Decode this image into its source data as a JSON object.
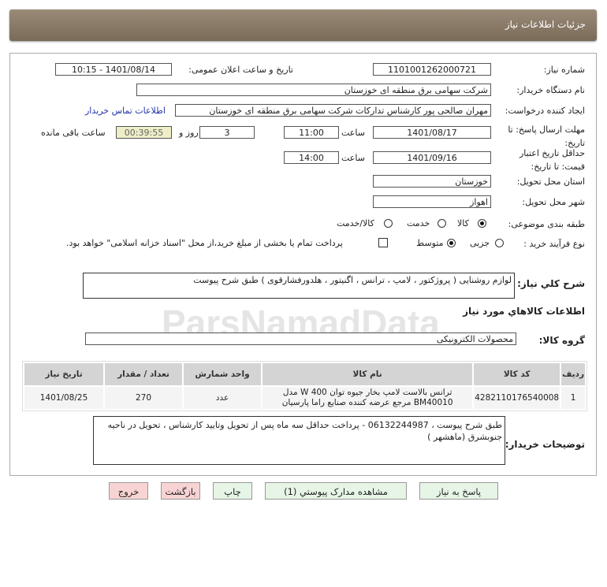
{
  "header": {
    "title": "جزئیات اطلاعات نیاز"
  },
  "form": {
    "need_number_label": "شماره نیاز:",
    "need_number": "1101001262000721",
    "announce_label": "تاریخ و ساعت اعلان عمومی:",
    "announce_value": "1401/08/14 - 10:15",
    "buyer_label": "نام دستگاه خریدار:",
    "buyer": "شرکت سهامی برق منطقه ای خوزستان",
    "creator_label": "ایجاد کننده درخواست:",
    "creator": "مهران صالحی پور کارشناس تدارکات شرکت سهامی برق منطقه ای خوزستان",
    "contact_link": "اطلاعات تماس خریدار",
    "deadline_label": "مهلت ارسال پاسخ: تا تاریخ:",
    "deadline_date": "1401/08/17",
    "time_label": "ساعت",
    "deadline_time": "11:00",
    "days": "3",
    "days_label": "روز و",
    "remaining": "00:39:55",
    "remaining_label": "ساعت باقی مانده",
    "validity_label": "حداقل تاریخ اعتبار قیمت: تا تاریخ:",
    "validity_date": "1401/09/16",
    "validity_time": "14:00",
    "province_label": "استان محل تحویل:",
    "province": "خوزستان",
    "city_label": "شهر محل تحویل:",
    "city": "اهواز",
    "category_label": "طبقه بندی موضوعی:",
    "category_options": [
      "کالا",
      "خدمت",
      "کالا/خدمت"
    ],
    "category_selected": "کالا",
    "process_label": "نوع فرآیند خرید :",
    "process_options": [
      "جزیی",
      "متوسط"
    ],
    "process_selected": "متوسط",
    "payment_note": "پرداخت تمام یا بخشی از مبلغ خرید،از محل \"اسناد خزانه اسلامی\" خواهد بود.",
    "summary_label": "شرح کلي نياز:",
    "summary": "لوازم روشنایی ( پروژکتور ، لامپ ، ترانس ، اگنیتور ، هلدورفشارقوی ) طبق شرح پیوست",
    "goods_heading": "اطلاعات كالاهاي مورد نياز",
    "group_label": "گروه کالا:",
    "group": "محصولات الکترونیکی",
    "buyer_notes_label": "توضيحات خريدار:",
    "buyer_notes": "طبق شرح پیوست ، 06132244987 - پرداخت حداقل سه ماه پس از تحویل وتایید کارشناس ، تحویل در ناحیه جنوبشرق (ماهشهر )"
  },
  "table": {
    "headers": [
      "ردیف",
      "کد کالا",
      "نام کالا",
      "واحد شمارش",
      "تعداد / مقدار",
      "تاریخ نیاز"
    ],
    "rows": [
      [
        "1",
        "4282110176540008",
        "ترانس بالاست لامپ بخار جیوه توان 400 W مدل BM40010 مرجع عرضه کننده صنایع راما پارسیان",
        "عدد",
        "270",
        "1401/08/25"
      ]
    ]
  },
  "buttons": {
    "reply": "پاسخ به نیاز",
    "attachments": "مشاهده مدارک پیوستي (1)",
    "print": "چاپ",
    "back": "بازگشت",
    "exit": "خروج"
  },
  "watermark": "ParsNamadData"
}
